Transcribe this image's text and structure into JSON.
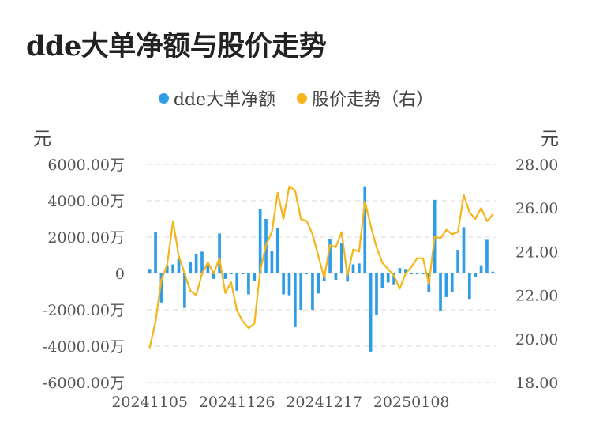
{
  "title": "dde大单净额与股价走势",
  "left_unit": "元",
  "right_unit": "元",
  "colors": {
    "bar": "#2f9de6",
    "line": "#f5b418",
    "grid": "#e6e6e6"
  },
  "chart_data": {
    "type": "bar+line",
    "title": "dde大单净额与股价走势",
    "legend": [
      {
        "name": "dde大单净额",
        "color": "#2f9de6",
        "icon": "dot"
      },
      {
        "name": "股价走势（右）",
        "color": "#f5b418",
        "icon": "dot"
      }
    ],
    "y_left": {
      "min": -6000,
      "max": 6000,
      "step": 2000,
      "tick_labels": [
        "6000.00万",
        "4000.00万",
        "2000.00万",
        "0",
        "-2000.00万",
        "-4000.00万",
        "-6000.00万"
      ]
    },
    "y_right": {
      "min": 18,
      "max": 28,
      "step": 2,
      "tick_labels": [
        "28.00",
        "26.00",
        "24.00",
        "22.00",
        "20.00",
        "18.00"
      ]
    },
    "x_tick_labels": [
      {
        "label": "20241105",
        "index": 0
      },
      {
        "label": "20241126",
        "index": 15
      },
      {
        "label": "20241217",
        "index": 30
      },
      {
        "label": "20250108",
        "index": 45
      }
    ],
    "grid": "horizontal dashed",
    "legend_position": "top",
    "series": [
      {
        "name": "dde大单净额",
        "type": "bar",
        "unit": "万元",
        "values": [
          250,
          2300,
          -1600,
          450,
          500,
          800,
          -1900,
          650,
          1050,
          1200,
          500,
          -300,
          2200,
          -300,
          0,
          -950,
          0,
          -1150,
          -400,
          3550,
          3000,
          1250,
          2500,
          -1150,
          -1200,
          -2950,
          -2000,
          0,
          -2000,
          -1100,
          -400,
          1900,
          -350,
          1650,
          -450,
          500,
          550,
          4800,
          -4300,
          -2300,
          -800,
          -500,
          -600,
          300,
          250,
          0,
          0,
          0,
          -1000,
          4050,
          -2050,
          -1300,
          -1000,
          1300,
          2550,
          -1400,
          -200,
          450,
          1850,
          100
        ]
      },
      {
        "name": "股价走势（右）",
        "type": "line",
        "axis": "right",
        "unit": "元",
        "values": [
          19.6,
          20.8,
          22.7,
          23.4,
          25.4,
          23.8,
          23.0,
          22.2,
          22.0,
          23.0,
          23.5,
          23.0,
          23.7,
          22.1,
          22.6,
          21.3,
          20.8,
          20.5,
          20.7,
          23.1,
          24.3,
          24.9,
          26.7,
          25.5,
          27.0,
          26.8,
          25.5,
          25.4,
          24.8,
          23.8,
          22.8,
          24.3,
          24.2,
          24.9,
          22.9,
          24.1,
          24.0,
          26.3,
          25.2,
          24.2,
          23.5,
          23.2,
          22.9,
          22.3,
          23.0,
          23.3,
          23.7,
          23.7,
          22.5,
          24.7,
          24.6,
          25.0,
          24.8,
          24.9,
          26.6,
          25.8,
          25.5,
          26.0,
          25.4,
          25.7
        ]
      }
    ]
  }
}
